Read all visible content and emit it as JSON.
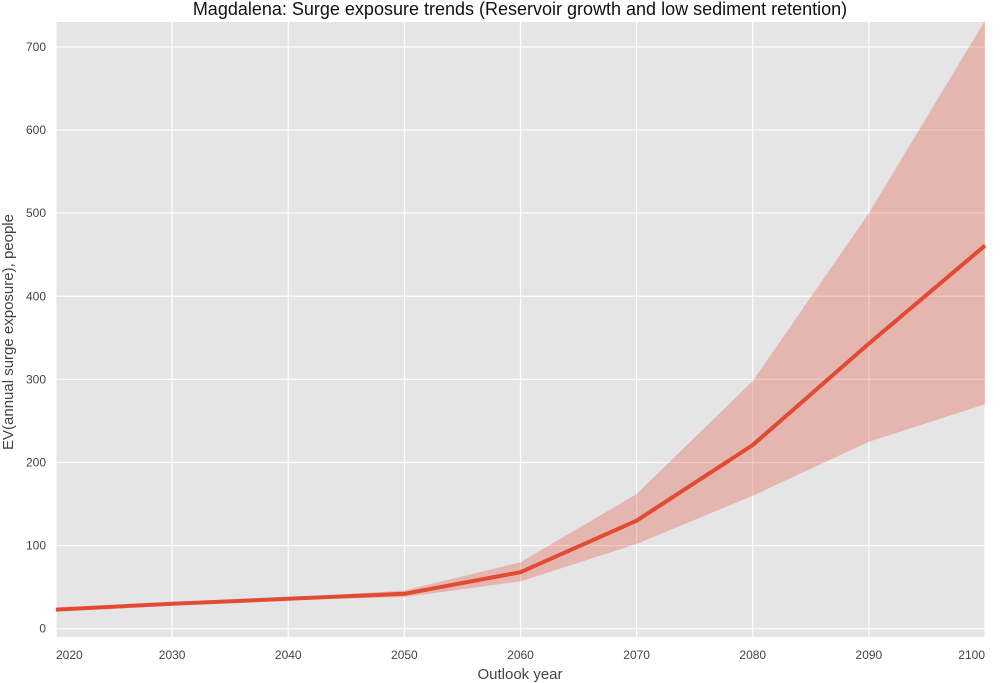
{
  "chart_data": {
    "type": "line",
    "title": "Magdalena: Surge exposure trends (Reservoir growth and low sediment retention)",
    "xlabel": "Outlook year",
    "ylabel": "EV(annual surge exposure), people",
    "xlim": [
      2020,
      2100
    ],
    "ylim": [
      -10,
      730
    ],
    "xticks": [
      2020,
      2030,
      2040,
      2050,
      2060,
      2070,
      2080,
      2090,
      2100
    ],
    "yticks": [
      0,
      100,
      200,
      300,
      400,
      500,
      600,
      700
    ],
    "grid": true,
    "background": "#e5e5e5",
    "grid_color": "#ffffff",
    "line_color": "#e24a33",
    "band_color": "#e24a33",
    "series": [
      {
        "x": [
          2020,
          2030,
          2040,
          2050,
          2060,
          2070,
          2080,
          2090,
          2100
        ],
        "values": [
          23,
          30,
          36,
          42,
          68,
          130,
          221,
          343,
          461
        ],
        "lower": [
          23,
          30,
          35,
          38,
          57,
          102,
          160,
          225,
          270
        ],
        "upper": [
          23,
          30,
          37,
          46,
          80,
          162,
          298,
          500,
          732
        ]
      }
    ]
  }
}
